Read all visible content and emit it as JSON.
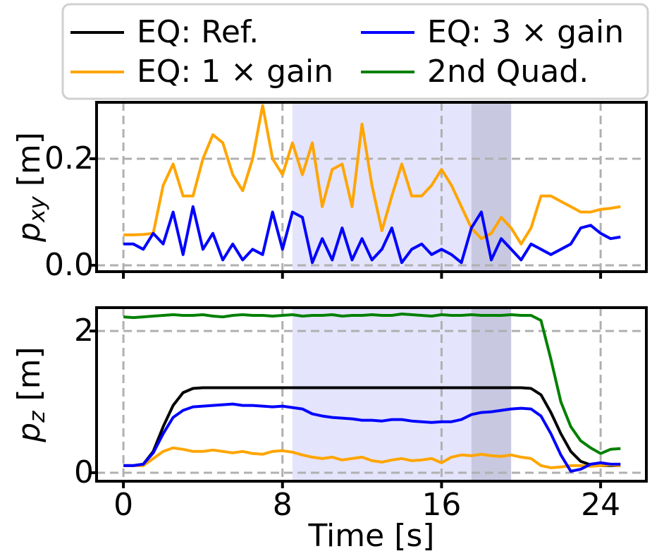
{
  "chart_data": [
    {
      "type": "line",
      "ylabel_parts": [
        "p",
        "xy",
        " [m]"
      ],
      "x": [
        0,
        0.5,
        1,
        1.5,
        2,
        2.5,
        3,
        3.5,
        4,
        4.5,
        5,
        5.5,
        6,
        6.5,
        7,
        7.5,
        8,
        8.5,
        9,
        9.5,
        10,
        10.5,
        11,
        11.5,
        12,
        12.5,
        13,
        13.5,
        14,
        14.5,
        15,
        15.5,
        16,
        16.5,
        17,
        17.5,
        18,
        18.5,
        19,
        19.5,
        20,
        20.5,
        21,
        21.5,
        22,
        22.5,
        23,
        23.5,
        24,
        24.5,
        25
      ],
      "series": [
        {
          "name": "EQ: 1 × gain",
          "color": "#ffa500",
          "values": [
            0.057,
            0.057,
            0.058,
            0.06,
            0.15,
            0.19,
            0.13,
            0.13,
            0.2,
            0.245,
            0.23,
            0.17,
            0.14,
            0.2,
            0.3,
            0.2,
            0.17,
            0.23,
            0.17,
            0.23,
            0.11,
            0.18,
            0.19,
            0.11,
            0.265,
            0.15,
            0.065,
            0.13,
            0.19,
            0.13,
            0.13,
            0.15,
            0.18,
            0.15,
            0.11,
            0.07,
            0.05,
            0.06,
            0.09,
            0.07,
            0.04,
            0.07,
            0.13,
            0.13,
            0.12,
            0.11,
            0.1,
            0.1,
            0.105,
            0.107,
            0.11
          ]
        },
        {
          "name": "EQ: 3 × gain",
          "color": "#0000ff",
          "values": [
            0.04,
            0.04,
            0.03,
            0.06,
            0.04,
            0.1,
            0.02,
            0.11,
            0.03,
            0.06,
            0.01,
            0.04,
            0.01,
            0.03,
            0.02,
            0.1,
            0.03,
            0.1,
            0.09,
            0.005,
            0.05,
            0.01,
            0.07,
            0.01,
            0.05,
            0.01,
            0.03,
            0.07,
            0.005,
            0.03,
            0.04,
            0.02,
            0.03,
            0.02,
            0.005,
            0.07,
            0.1,
            0.01,
            0.05,
            0.03,
            0.01,
            0.04,
            0.03,
            0.02,
            0.03,
            0.04,
            0.07,
            0.075,
            0.06,
            0.05,
            0.053
          ]
        }
      ],
      "spans": [
        {
          "start": 8.5,
          "end": 17.5,
          "color": "#e4e4fc"
        },
        {
          "start": 17.5,
          "end": 19.5,
          "color": "#c8c8e0"
        }
      ],
      "xlim": [
        -1.35,
        26.3
      ],
      "xticks": [
        0,
        8,
        16,
        24
      ],
      "ylim": [
        -0.012,
        0.306
      ],
      "yticks": [
        {
          "value": 0,
          "label": "0.0"
        },
        {
          "value": 0.2,
          "label": "0.2"
        }
      ],
      "grid": true
    },
    {
      "type": "line",
      "ylabel_parts": [
        "p",
        "z",
        " [m]"
      ],
      "xlabel": "Time [s]",
      "x": [
        0,
        0.5,
        1,
        1.5,
        2,
        2.5,
        3,
        3.5,
        4,
        4.5,
        5,
        5.5,
        6,
        6.5,
        7,
        7.5,
        8,
        8.5,
        9,
        9.5,
        10,
        10.5,
        11,
        11.5,
        12,
        12.5,
        13,
        13.5,
        14,
        14.5,
        15,
        15.5,
        16,
        16.5,
        17,
        17.5,
        18,
        18.5,
        19,
        19.5,
        20,
        20.5,
        21,
        21.5,
        22,
        22.5,
        23,
        23.5,
        24,
        24.5,
        25
      ],
      "series": [
        {
          "name": "EQ: Ref.",
          "color": "#000000",
          "values": [
            0.1,
            0.1,
            0.12,
            0.3,
            0.65,
            0.95,
            1.13,
            1.19,
            1.2,
            1.2,
            1.2,
            1.2,
            1.2,
            1.2,
            1.2,
            1.2,
            1.2,
            1.2,
            1.2,
            1.2,
            1.2,
            1.2,
            1.2,
            1.2,
            1.2,
            1.2,
            1.2,
            1.2,
            1.2,
            1.2,
            1.2,
            1.2,
            1.2,
            1.2,
            1.2,
            1.2,
            1.2,
            1.2,
            1.2,
            1.2,
            1.2,
            1.19,
            1.1,
            0.85,
            0.55,
            0.3,
            0.16,
            0.11,
            0.1,
            0.1,
            0.1
          ]
        },
        {
          "name": "EQ: 1 × gain",
          "color": "#ffa500",
          "values": [
            0.1,
            0.1,
            0.1,
            0.2,
            0.3,
            0.35,
            0.33,
            0.3,
            0.3,
            0.32,
            0.3,
            0.28,
            0.3,
            0.27,
            0.26,
            0.3,
            0.31,
            0.29,
            0.25,
            0.22,
            0.2,
            0.22,
            0.18,
            0.2,
            0.22,
            0.17,
            0.15,
            0.18,
            0.2,
            0.17,
            0.18,
            0.2,
            0.14,
            0.22,
            0.25,
            0.24,
            0.26,
            0.24,
            0.23,
            0.25,
            0.22,
            0.2,
            0.1,
            0.07,
            0.08,
            0.1,
            0.1,
            0.09,
            0.1,
            0.11,
            0.1
          ]
        },
        {
          "name": "EQ: 3 × gain",
          "color": "#0000ff",
          "values": [
            0.1,
            0.1,
            0.12,
            0.28,
            0.55,
            0.78,
            0.88,
            0.93,
            0.94,
            0.95,
            0.96,
            0.97,
            0.95,
            0.95,
            0.94,
            0.93,
            0.94,
            0.92,
            0.9,
            0.83,
            0.8,
            0.78,
            0.77,
            0.76,
            0.74,
            0.74,
            0.73,
            0.75,
            0.75,
            0.73,
            0.72,
            0.71,
            0.72,
            0.72,
            0.75,
            0.82,
            0.85,
            0.86,
            0.88,
            0.9,
            0.91,
            0.9,
            0.8,
            0.55,
            0.25,
            0.02,
            0.05,
            0.12,
            0.14,
            0.12,
            0.12
          ]
        },
        {
          "name": "2nd Quad.",
          "color": "#008000",
          "values": [
            2.2,
            2.19,
            2.2,
            2.21,
            2.22,
            2.23,
            2.22,
            2.22,
            2.23,
            2.21,
            2.2,
            2.22,
            2.23,
            2.22,
            2.22,
            2.21,
            2.22,
            2.23,
            2.21,
            2.22,
            2.22,
            2.23,
            2.21,
            2.22,
            2.22,
            2.23,
            2.22,
            2.22,
            2.24,
            2.23,
            2.22,
            2.21,
            2.23,
            2.22,
            2.22,
            2.23,
            2.22,
            2.22,
            2.22,
            2.23,
            2.22,
            2.22,
            2.15,
            1.6,
            1.0,
            0.65,
            0.45,
            0.35,
            0.27,
            0.33,
            0.34
          ]
        }
      ],
      "spans": [
        {
          "start": 8.5,
          "end": 17.5,
          "color": "#e4e4fc"
        },
        {
          "start": 17.5,
          "end": 19.5,
          "color": "#c8c8e0"
        }
      ],
      "xlim": [
        -1.35,
        26.3
      ],
      "xticks": [
        0,
        8,
        16,
        24
      ],
      "ylim": [
        -0.12,
        2.33
      ],
      "yticks": [
        0,
        2
      ],
      "grid": true
    }
  ]
}
